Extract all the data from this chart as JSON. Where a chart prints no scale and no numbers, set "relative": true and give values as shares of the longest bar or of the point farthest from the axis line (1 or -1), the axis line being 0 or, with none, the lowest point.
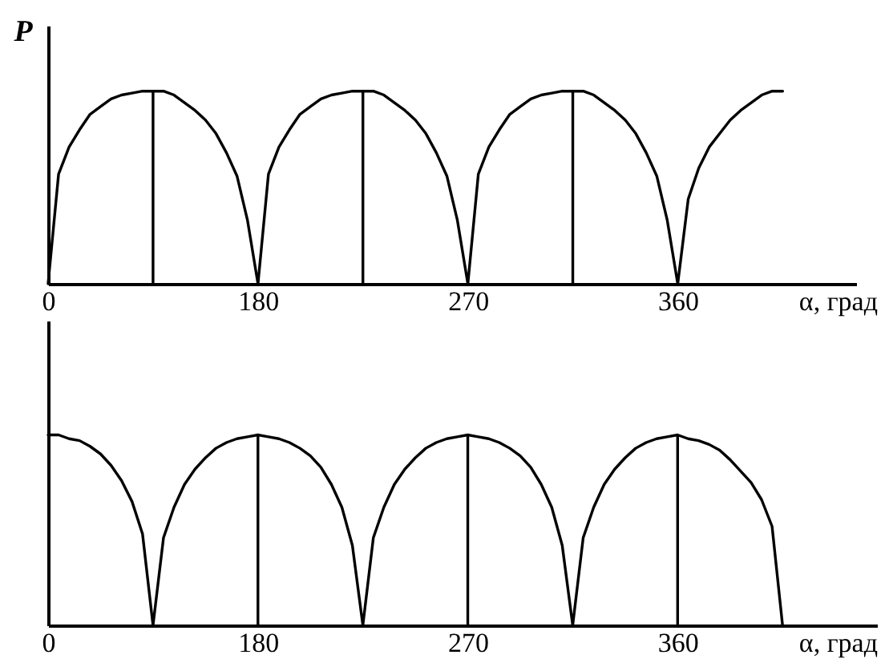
{
  "chart_data": [
    {
      "type": "line",
      "relative": true,
      "ylabel": "P",
      "xlabel": "α, град",
      "categories": [
        "0",
        null,
        null,
        null,
        null,
        null,
        null,
        null,
        null,
        null,
        null,
        null,
        null,
        null,
        null,
        null,
        null,
        null,
        null,
        null,
        "180",
        null,
        null,
        null,
        null,
        null,
        null,
        null,
        null,
        null,
        null,
        null,
        null,
        null,
        null,
        null,
        null,
        null,
        null,
        null,
        "270",
        null,
        null,
        null,
        null,
        null,
        null,
        null,
        null,
        null,
        null,
        null,
        null,
        null,
        null,
        null,
        null,
        null,
        null,
        null,
        "360",
        null,
        null,
        null,
        null,
        null,
        null,
        null,
        null,
        null,
        null,
        null,
        null,
        null,
        null,
        null,
        null,
        null
      ],
      "series": [
        {
          "color": "#000000",
          "values": [
            0,
            0.57,
            0.71,
            0.8,
            0.88,
            0.92,
            0.96,
            0.98,
            0.99,
            1,
            1,
            1,
            0.98,
            0.94,
            0.9,
            0.85,
            0.78,
            0.68,
            0.56,
            0.33,
            0,
            0.57,
            0.71,
            0.8,
            0.88,
            0.92,
            0.96,
            0.98,
            0.99,
            1,
            1,
            1,
            0.98,
            0.94,
            0.9,
            0.85,
            0.78,
            0.68,
            0.56,
            0.33,
            0,
            0.57,
            0.71,
            0.8,
            0.88,
            0.92,
            0.96,
            0.98,
            0.99,
            1,
            1,
            1,
            0.98,
            0.94,
            0.9,
            0.85,
            0.78,
            0.68,
            0.56,
            0.33,
            0,
            0.44,
            0.6,
            0.71,
            0.78,
            0.85,
            0.9,
            0.94,
            0.98,
            1,
            1,
            null,
            null,
            null,
            null,
            null,
            null,
            null
          ]
        },
        {
          "type": "bar",
          "color": "#000000",
          "values": [
            null,
            null,
            null,
            null,
            null,
            null,
            null,
            null,
            null,
            null,
            1,
            null,
            null,
            null,
            null,
            null,
            null,
            null,
            null,
            null,
            null,
            null,
            null,
            null,
            null,
            null,
            null,
            null,
            null,
            null,
            1,
            null,
            null,
            null,
            null,
            null,
            null,
            null,
            null,
            null,
            null,
            null,
            null,
            null,
            null,
            null,
            null,
            null,
            null,
            null,
            1,
            null,
            null,
            null,
            null,
            null,
            null,
            null,
            null,
            null,
            null,
            null,
            null,
            null,
            null,
            null,
            null,
            null,
            null,
            null,
            null,
            null,
            null,
            null,
            null,
            null,
            null,
            null
          ]
        }
      ]
    },
    {
      "type": "line",
      "relative": true,
      "xlabel": "α, град",
      "categories": [
        "0",
        null,
        null,
        null,
        null,
        null,
        null,
        null,
        null,
        null,
        null,
        null,
        null,
        null,
        null,
        null,
        null,
        null,
        null,
        null,
        "180",
        null,
        null,
        null,
        null,
        null,
        null,
        null,
        null,
        null,
        null,
        null,
        null,
        null,
        null,
        null,
        null,
        null,
        null,
        null,
        "270",
        null,
        null,
        null,
        null,
        null,
        null,
        null,
        null,
        null,
        null,
        null,
        null,
        null,
        null,
        null,
        null,
        null,
        null,
        null,
        "360",
        null,
        null,
        null,
        null,
        null,
        null,
        null,
        null,
        null,
        null,
        null,
        null,
        null,
        null,
        null,
        null,
        null,
        null,
        null
      ],
      "series": [
        {
          "color": "#000000",
          "values": [
            1,
            1,
            0.98,
            0.97,
            0.94,
            0.9,
            0.84,
            0.76,
            0.65,
            0.48,
            0,
            0.46,
            0.62,
            0.74,
            0.82,
            0.88,
            0.93,
            0.96,
            0.98,
            0.99,
            1,
            0.99,
            0.98,
            0.96,
            0.93,
            0.89,
            0.83,
            0.74,
            0.62,
            0.42,
            0,
            0.46,
            0.62,
            0.74,
            0.82,
            0.88,
            0.93,
            0.96,
            0.98,
            0.99,
            1,
            0.99,
            0.98,
            0.96,
            0.93,
            0.89,
            0.83,
            0.74,
            0.62,
            0.42,
            0,
            0.46,
            0.62,
            0.74,
            0.82,
            0.88,
            0.93,
            0.96,
            0.98,
            0.99,
            1,
            0.98,
            0.97,
            0.95,
            0.92,
            0.87,
            0.81,
            0.75,
            0.66,
            0.52,
            0,
            null,
            null,
            null,
            null,
            null,
            null,
            null,
            null,
            null
          ]
        },
        {
          "type": "bar",
          "color": "#000000",
          "values": [
            null,
            null,
            null,
            null,
            null,
            null,
            null,
            null,
            null,
            null,
            null,
            null,
            null,
            null,
            null,
            null,
            null,
            null,
            null,
            null,
            1,
            null,
            null,
            null,
            null,
            null,
            null,
            null,
            null,
            null,
            null,
            null,
            null,
            null,
            null,
            null,
            null,
            null,
            null,
            null,
            1,
            null,
            null,
            null,
            null,
            null,
            null,
            null,
            null,
            null,
            null,
            null,
            null,
            null,
            null,
            null,
            null,
            null,
            null,
            null,
            1,
            null,
            null,
            null,
            null,
            null,
            null,
            null,
            null,
            null,
            null,
            null,
            null,
            null,
            null,
            null,
            null,
            null,
            null,
            null
          ]
        }
      ]
    }
  ]
}
